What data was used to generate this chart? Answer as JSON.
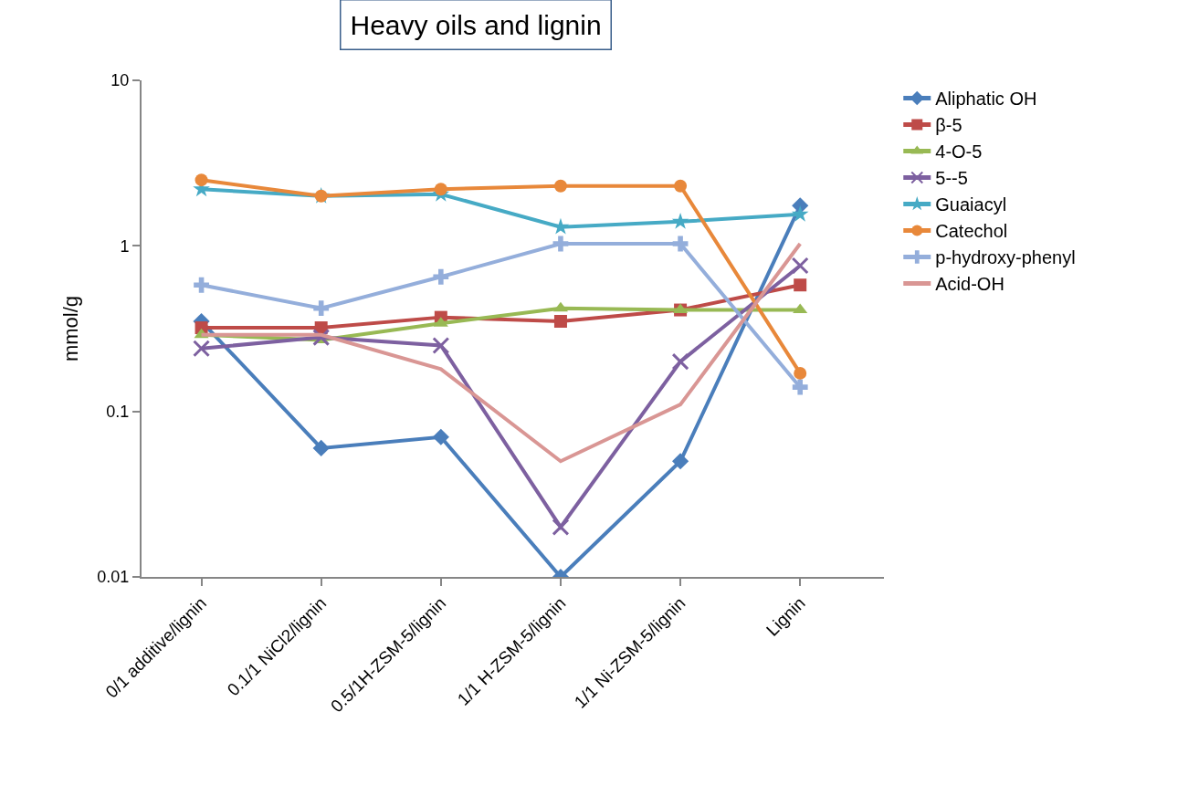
{
  "chart_data": {
    "type": "line",
    "title": "Heavy oils and lignin",
    "ylabel": "mmol/g",
    "categories": [
      "0/1 additive/lignin",
      "0.1/1 NiCl2/lignin",
      "0.5/1H-ZSM-5/lignin",
      "1/1 H-ZSM-5/lignin",
      "1/1 Ni-ZSM-5/lignin",
      "Lignin"
    ],
    "series": [
      {
        "name": "Aliphatic OH",
        "color": "#4a7ebb",
        "marker": "diamond",
        "values": [
          0.35,
          0.06,
          0.07,
          0.01,
          0.05,
          1.75
        ]
      },
      {
        "name": "β-5",
        "color": "#be4b48",
        "marker": "square",
        "values": [
          0.32,
          0.32,
          0.37,
          0.35,
          0.41,
          0.58
        ]
      },
      {
        "name": "4-O-5",
        "color": "#98b954",
        "marker": "triangle",
        "values": [
          0.29,
          0.27,
          0.34,
          0.42,
          0.41,
          0.41
        ]
      },
      {
        "name": "5--5",
        "color": "#7d60a0",
        "marker": "x",
        "values": [
          0.24,
          0.28,
          0.25,
          0.02,
          0.2,
          0.76
        ]
      },
      {
        "name": "Guaiacyl",
        "color": "#46aac5",
        "marker": "star",
        "values": [
          2.2,
          2.0,
          2.05,
          1.3,
          1.4,
          1.55
        ]
      },
      {
        "name": "Catechol",
        "color": "#e8883a",
        "marker": "circle",
        "values": [
          2.5,
          2.0,
          2.2,
          2.3,
          2.3,
          0.17
        ]
      },
      {
        "name": "p-hydroxy-phenyl",
        "color": "#94aedb",
        "marker": "cross",
        "values": [
          0.58,
          0.42,
          0.65,
          1.03,
          1.03,
          0.14
        ]
      },
      {
        "name": "Acid-OH",
        "color": "#d99694",
        "marker": "none",
        "values": [
          0.29,
          0.29,
          0.18,
          0.05,
          0.11,
          1.03
        ]
      }
    ],
    "log": "y",
    "ylim": [
      0.01,
      10
    ],
    "yticks": [
      0.01,
      0.1,
      1,
      10
    ],
    "grid": false,
    "legend": "right",
    "line_style": "solid"
  }
}
